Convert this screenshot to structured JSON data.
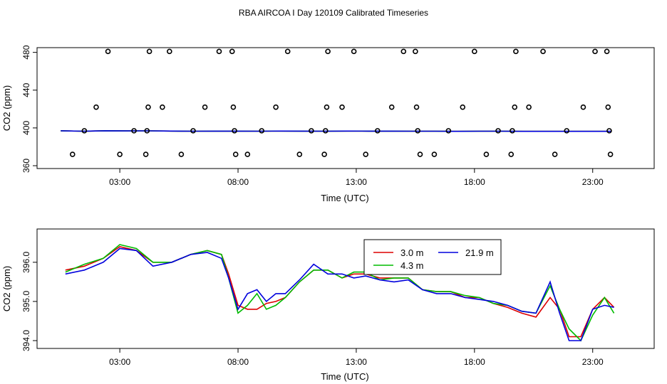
{
  "title": "RBA AIRCOA I  Day 120109  Calibrated Timeseries",
  "chart_data": [
    {
      "type": "scatter",
      "xlabel": "Time (UTC)",
      "ylabel": "CO2 (ppm)",
      "xticks": [
        "03:00",
        "08:00",
        "13:00",
        "18:00",
        "23:00"
      ],
      "xtick_hours": [
        3,
        8,
        13,
        18,
        23
      ],
      "yticks": [
        "360",
        "400",
        "440",
        "480"
      ],
      "ytick_values": [
        360,
        400,
        440,
        480
      ],
      "xlim": [
        -0.5,
        25.6
      ],
      "ylim": [
        357,
        485
      ],
      "flag_points": [
        {
          "x": 1.0,
          "y": 372
        },
        {
          "x": 1.5,
          "y": 397
        },
        {
          "x": 2.0,
          "y": 422
        },
        {
          "x": 2.5,
          "y": 481
        },
        {
          "x": 3.0,
          "y": 372
        },
        {
          "x": 3.6,
          "y": 397
        },
        {
          "x": 4.1,
          "y": 372
        },
        {
          "x": 4.15,
          "y": 397
        },
        {
          "x": 4.2,
          "y": 422
        },
        {
          "x": 4.25,
          "y": 481
        },
        {
          "x": 4.8,
          "y": 422
        },
        {
          "x": 5.1,
          "y": 481
        },
        {
          "x": 5.6,
          "y": 372
        },
        {
          "x": 6.1,
          "y": 397
        },
        {
          "x": 6.6,
          "y": 422
        },
        {
          "x": 7.2,
          "y": 481
        },
        {
          "x": 7.75,
          "y": 481
        },
        {
          "x": 7.8,
          "y": 422
        },
        {
          "x": 7.85,
          "y": 397
        },
        {
          "x": 7.9,
          "y": 372
        },
        {
          "x": 8.4,
          "y": 372
        },
        {
          "x": 9.0,
          "y": 397
        },
        {
          "x": 9.6,
          "y": 422
        },
        {
          "x": 10.1,
          "y": 481
        },
        {
          "x": 10.6,
          "y": 372
        },
        {
          "x": 11.1,
          "y": 397
        },
        {
          "x": 11.65,
          "y": 372
        },
        {
          "x": 11.7,
          "y": 397
        },
        {
          "x": 11.75,
          "y": 422
        },
        {
          "x": 11.8,
          "y": 481
        },
        {
          "x": 12.4,
          "y": 422
        },
        {
          "x": 12.9,
          "y": 481
        },
        {
          "x": 13.4,
          "y": 372
        },
        {
          "x": 13.9,
          "y": 397
        },
        {
          "x": 14.5,
          "y": 422
        },
        {
          "x": 15.0,
          "y": 481
        },
        {
          "x": 15.5,
          "y": 481
        },
        {
          "x": 15.55,
          "y": 422
        },
        {
          "x": 15.6,
          "y": 397
        },
        {
          "x": 15.7,
          "y": 372
        },
        {
          "x": 16.3,
          "y": 372
        },
        {
          "x": 16.9,
          "y": 397
        },
        {
          "x": 17.5,
          "y": 422
        },
        {
          "x": 18.0,
          "y": 481
        },
        {
          "x": 18.5,
          "y": 372
        },
        {
          "x": 19.0,
          "y": 397
        },
        {
          "x": 19.55,
          "y": 372
        },
        {
          "x": 19.6,
          "y": 397
        },
        {
          "x": 19.7,
          "y": 422
        },
        {
          "x": 19.75,
          "y": 481
        },
        {
          "x": 20.3,
          "y": 422
        },
        {
          "x": 20.9,
          "y": 481
        },
        {
          "x": 21.4,
          "y": 372
        },
        {
          "x": 21.9,
          "y": 397
        },
        {
          "x": 22.6,
          "y": 422
        },
        {
          "x": 23.1,
          "y": 481
        },
        {
          "x": 23.6,
          "y": 481
        },
        {
          "x": 23.65,
          "y": 422
        },
        {
          "x": 23.7,
          "y": 397
        },
        {
          "x": 23.75,
          "y": 372
        }
      ],
      "series": [
        {
          "color": "#dd0000",
          "values_level": [
            397,
            396.5,
            397,
            396.8,
            396.9,
            396.7,
            396.5,
            396.6,
            396.6,
            396.5,
            396.7,
            396.6,
            396.5,
            396.7,
            396.6,
            396.6,
            396.5,
            396.5,
            396.4,
            396.5,
            396.5,
            396.4,
            396.4,
            396.4,
            396.4,
            396.4
          ]
        },
        {
          "color": "#00cc00",
          "values_level": [
            397,
            396.5,
            397,
            396.8,
            396.9,
            396.7,
            396.5,
            396.6,
            396.6,
            396.5,
            396.7,
            396.6,
            396.5,
            396.7,
            396.6,
            396.6,
            396.5,
            396.5,
            396.4,
            396.5,
            396.5,
            396.4,
            396.4,
            396.4,
            396.4,
            396.4
          ]
        },
        {
          "color": "#0000dd",
          "values_level": [
            397,
            396.5,
            397,
            396.8,
            396.9,
            396.7,
            396.5,
            396.6,
            396.6,
            396.5,
            396.7,
            396.6,
            396.5,
            396.7,
            396.6,
            396.6,
            396.5,
            396.5,
            396.4,
            396.5,
            396.5,
            396.4,
            396.4,
            396.4,
            396.4,
            396.4
          ]
        }
      ],
      "line_x_range": [
        0.5,
        23.8
      ]
    },
    {
      "type": "line",
      "xlabel": "Time (UTC)",
      "ylabel": "CO2 (ppm)",
      "xticks": [
        "03:00",
        "08:00",
        "13:00",
        "18:00",
        "23:00"
      ],
      "xtick_hours": [
        3,
        8,
        13,
        18,
        23
      ],
      "yticks": [
        "394.0",
        "395.0",
        "396.0"
      ],
      "ytick_values": [
        394,
        395,
        396
      ],
      "xlim": [
        -0.5,
        25.6
      ],
      "ylim": [
        393.8,
        396.85
      ],
      "legend": {
        "placement": "top-center",
        "entries": [
          "3.0 m",
          "4.3 m",
          "21.9 m"
        ]
      },
      "x": [
        0.7,
        1.5,
        2.3,
        3.0,
        3.7,
        4.4,
        5.2,
        6.0,
        6.7,
        7.3,
        7.6,
        8.0,
        8.4,
        8.8,
        9.2,
        9.6,
        10.0,
        10.6,
        11.2,
        11.8,
        12.4,
        12.9,
        13.4,
        14.0,
        14.6,
        15.2,
        15.8,
        16.4,
        17.0,
        17.6,
        18.2,
        18.8,
        19.4,
        20.0,
        20.6,
        21.2,
        21.6,
        22.0,
        22.5,
        23.0,
        23.5,
        23.9
      ],
      "series": [
        {
          "name": "3.0 m",
          "color": "#dd0000",
          "values": [
            395.8,
            395.9,
            396.1,
            396.4,
            396.3,
            396.0,
            396.0,
            396.2,
            396.3,
            396.2,
            395.7,
            394.9,
            394.8,
            394.8,
            394.95,
            395.0,
            395.1,
            395.5,
            395.8,
            395.8,
            395.6,
            395.7,
            395.7,
            395.6,
            395.6,
            395.6,
            395.3,
            395.25,
            395.25,
            395.1,
            395.1,
            394.95,
            394.85,
            394.7,
            394.6,
            395.1,
            394.8,
            394.1,
            394.1,
            394.8,
            395.1,
            394.85
          ]
        },
        {
          "name": "4.3 m",
          "color": "#00bb00",
          "values": [
            395.75,
            395.95,
            396.1,
            396.45,
            396.35,
            396.0,
            396.0,
            396.2,
            396.3,
            396.2,
            395.6,
            394.7,
            394.9,
            395.2,
            394.8,
            394.9,
            395.1,
            395.5,
            395.8,
            395.8,
            395.6,
            395.75,
            395.75,
            395.55,
            395.6,
            395.6,
            395.3,
            395.25,
            395.25,
            395.15,
            395.1,
            394.95,
            394.9,
            394.75,
            394.7,
            395.4,
            394.8,
            394.3,
            394.0,
            394.65,
            395.1,
            394.7
          ]
        },
        {
          "name": "21.9 m",
          "color": "#0000dd",
          "values": [
            395.7,
            395.8,
            396.0,
            396.35,
            396.3,
            395.9,
            396.0,
            396.2,
            396.25,
            396.1,
            395.6,
            394.8,
            395.2,
            395.3,
            395.0,
            395.2,
            395.2,
            395.55,
            395.95,
            395.7,
            395.7,
            395.6,
            395.65,
            395.55,
            395.5,
            395.55,
            395.3,
            395.2,
            395.2,
            395.1,
            395.05,
            395.0,
            394.9,
            394.75,
            394.7,
            395.5,
            394.7,
            394.0,
            394.0,
            394.8,
            394.9,
            394.85
          ]
        }
      ]
    }
  ]
}
